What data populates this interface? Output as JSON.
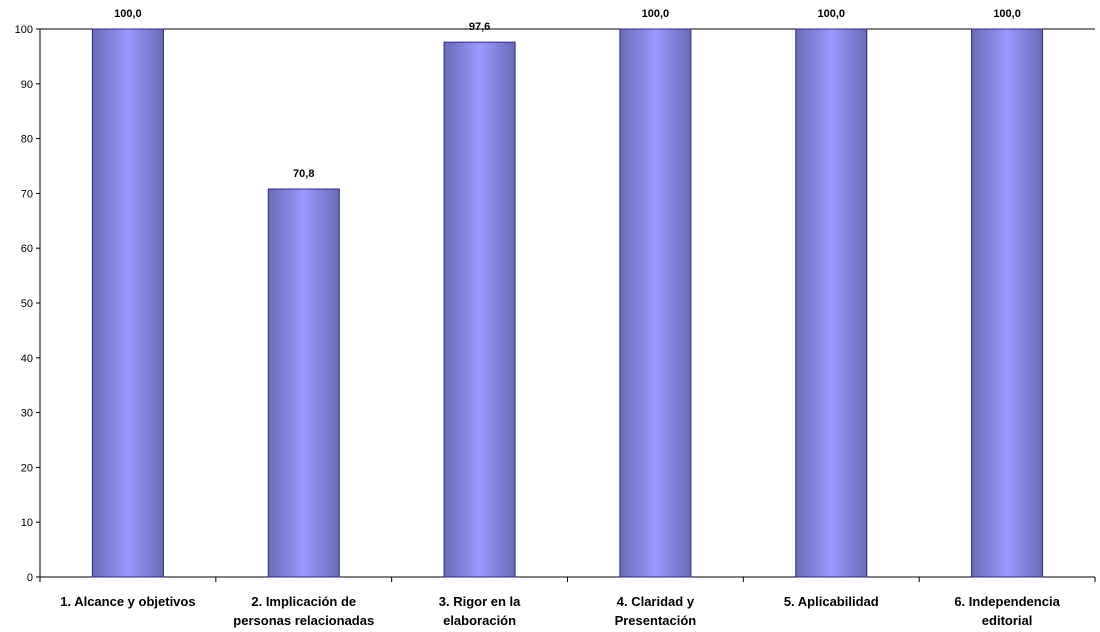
{
  "chart_data": {
    "type": "bar",
    "categories": [
      "1. Alcance y objetivos",
      "2. Implicación de personas relacionadas",
      "3. Rigor en la elaboración",
      "4. Claridad y Presentación",
      "5. Aplicabilidad",
      "6. Independencia editorial"
    ],
    "category_lines": [
      [
        "1. Alcance y objetivos"
      ],
      [
        "2. Implicación de",
        "personas relacionadas"
      ],
      [
        "3. Rigor en la",
        "elaboración"
      ],
      [
        "4. Claridad y",
        "Presentación"
      ],
      [
        "5. Aplicabilidad"
      ],
      [
        "6. Independencia",
        "editorial"
      ]
    ],
    "values": [
      100.0,
      70.8,
      97.6,
      100.0,
      100.0,
      100.0
    ],
    "data_labels": [
      "100,0",
      "70,8",
      "97,6",
      "100,0",
      "100,0",
      "100,0"
    ],
    "yticks": [
      0,
      10,
      20,
      30,
      40,
      50,
      60,
      70,
      80,
      90,
      100
    ],
    "ylim": [
      0,
      100
    ],
    "title": "",
    "xlabel": "",
    "ylabel": "",
    "grid": false,
    "bar_colors": {
      "edge": "#6b6bb8",
      "center": "#9999ff",
      "border": "#2b2b7a"
    }
  }
}
